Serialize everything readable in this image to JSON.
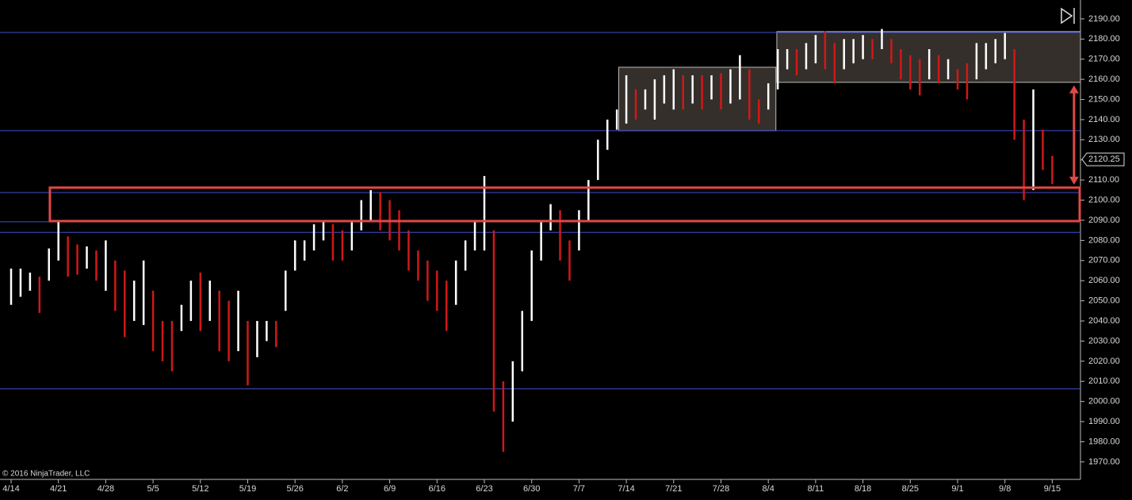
{
  "chart_data": {
    "type": "range-bar",
    "copyright": "© 2016 NinjaTrader, LLC",
    "up_color": "#ffffff",
    "down_color": "#d01818",
    "categories": [
      "4/14",
      null,
      null,
      null,
      null,
      "4/21",
      null,
      null,
      null,
      null,
      "4/28",
      null,
      null,
      null,
      null,
      "5/5",
      null,
      null,
      null,
      null,
      "5/12",
      null,
      null,
      null,
      null,
      "5/19",
      null,
      null,
      null,
      null,
      "5/26",
      null,
      null,
      null,
      null,
      "6/2",
      null,
      null,
      null,
      null,
      "6/9",
      null,
      null,
      null,
      null,
      "6/16",
      null,
      null,
      null,
      null,
      "6/23",
      null,
      null,
      null,
      null,
      "6/30",
      null,
      null,
      null,
      null,
      "7/7",
      null,
      null,
      null,
      null,
      "7/14",
      null,
      null,
      null,
      null,
      "7/21",
      null,
      null,
      null,
      null,
      "7/28",
      null,
      null,
      null,
      null,
      "8/4",
      null,
      null,
      null,
      null,
      "8/11",
      null,
      null,
      null,
      null,
      "8/18",
      null,
      null,
      null,
      null,
      "8/25",
      null,
      null,
      null,
      null,
      "9/1",
      null,
      null,
      null,
      null,
      "9/8",
      null,
      null,
      null,
      null,
      "9/15"
    ],
    "high": [
      2066,
      2066,
      2064,
      2062,
      2076,
      2090,
      2082,
      2078,
      2077,
      2075,
      2080,
      2070,
      2065,
      2060,
      2070,
      2055,
      2040,
      2040,
      2048,
      2060,
      2064,
      2060,
      2055,
      2050,
      2055,
      2040,
      2040,
      2040,
      2040,
      2065,
      2080,
      2080,
      2088,
      2089,
      2088,
      2085,
      2090,
      2100,
      2105,
      2104,
      2100,
      2095,
      2085,
      2075,
      2070,
      2065,
      2060,
      2070,
      2080,
      2090,
      2112,
      2085,
      2010,
      2020,
      2045,
      2075,
      2090,
      2098,
      2095,
      2080,
      2095,
      2110,
      2130,
      2140,
      2145,
      2162,
      2155,
      2155,
      2160,
      2162,
      2165,
      2162,
      2162,
      2162,
      2162,
      2163,
      2165,
      2172,
      2165,
      2150,
      2158,
      2175,
      2175,
      2175,
      2178,
      2182,
      2184,
      2178,
      2180,
      2180,
      2182,
      2180,
      2185,
      2180,
      2175,
      2172,
      2170,
      2175,
      2172,
      2170,
      2165,
      2168,
      2178,
      2178,
      2180,
      2183,
      2175,
      2140,
      2155,
      2135,
      2122
    ],
    "low": [
      2048,
      2052,
      2055,
      2044,
      2060,
      2070,
      2062,
      2063,
      2066,
      2060,
      2055,
      2045,
      2032,
      2040,
      2038,
      2025,
      2020,
      2015,
      2035,
      2040,
      2035,
      2040,
      2025,
      2020,
      2025,
      2008,
      2022,
      2030,
      2027,
      2045,
      2065,
      2070,
      2075,
      2080,
      2070,
      2070,
      2075,
      2085,
      2090,
      2085,
      2080,
      2075,
      2065,
      2060,
      2050,
      2045,
      2035,
      2048,
      2065,
      2075,
      2075,
      1995,
      1975,
      1990,
      2015,
      2040,
      2070,
      2085,
      2070,
      2060,
      2075,
      2090,
      2110,
      2125,
      2135,
      2138,
      2140,
      2145,
      2140,
      2148,
      2145,
      2145,
      2148,
      2145,
      2150,
      2145,
      2148,
      2150,
      2140,
      2138,
      2145,
      2155,
      2165,
      2162,
      2165,
      2168,
      2165,
      2158,
      2165,
      2168,
      2170,
      2170,
      2175,
      2168,
      2160,
      2155,
      2152,
      2160,
      2158,
      2160,
      2155,
      2150,
      2160,
      2165,
      2168,
      2170,
      2130,
      2100,
      2105,
      2115,
      2108
    ],
    "levels": [
      2183.25,
      2134.5,
      2103.75,
      2089.25,
      2084,
      2006.25
    ],
    "level_color": "#4050d0",
    "zones": [
      {
        "x": [
          64.2,
          80.8
        ],
        "y": [
          2134.5,
          2166
        ],
        "color": "#3a3430"
      },
      {
        "x": [
          80.9,
          113.2
        ],
        "y": [
          2158.5,
          2183.7
        ],
        "color": "#3a3430"
      }
    ],
    "support_box": {
      "x": [
        4.1,
        113.2
      ],
      "y": [
        2089.6,
        2106.2
      ],
      "color": "#e04848"
    },
    "arrow": {
      "x": 112.3,
      "y": [
        2107.7,
        2157
      ],
      "color": "#e04848"
    },
    "last_price": 2120.25,
    "ylim": [
      1961.3,
      2199.4
    ],
    "yticks": [
      {
        "value": 1970,
        "label": "1970.00"
      },
      {
        "value": 1980,
        "label": "1980.00"
      },
      {
        "value": 1990,
        "label": "1990.00"
      },
      {
        "value": 2000,
        "label": "2000.00"
      },
      {
        "value": 2010,
        "label": "2010.00"
      },
      {
        "value": 2020,
        "label": "2020.00"
      },
      {
        "value": 2030,
        "label": "2030.00"
      },
      {
        "value": 2040,
        "label": "2040.00"
      },
      {
        "value": 2050,
        "label": "2050.00"
      },
      {
        "value": 2060,
        "label": "2060.00"
      },
      {
        "value": 2070,
        "label": "2070.00"
      },
      {
        "value": 2080,
        "label": "2080.00"
      },
      {
        "value": 2090,
        "label": "2090.00"
      },
      {
        "value": 2100,
        "label": "2100.00"
      },
      {
        "value": 2110,
        "label": "2110.00"
      },
      {
        "value": 2120,
        "label": "2120.00"
      },
      {
        "value": 2130,
        "label": "2130.00"
      },
      {
        "value": 2140,
        "label": "2140.00"
      },
      {
        "value": 2150,
        "label": "2150.00"
      },
      {
        "value": 2160,
        "label": "2160.00"
      },
      {
        "value": 2170,
        "label": "2170.00"
      },
      {
        "value": 2180,
        "label": "2180.00"
      },
      {
        "value": 2190,
        "label": "2190.00"
      }
    ]
  }
}
